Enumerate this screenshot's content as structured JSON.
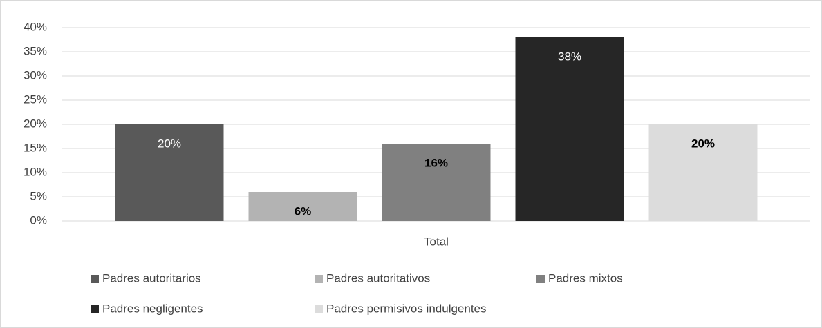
{
  "chart_data": {
    "type": "bar",
    "categories": [
      "Total"
    ],
    "series": [
      {
        "name": "Padres autoritarios",
        "color": "#595959",
        "values": [
          20
        ],
        "value_labels": [
          "20%"
        ]
      },
      {
        "name": "Padres autoritativos",
        "color": "#b3b3b3",
        "values": [
          6
        ],
        "value_labels": [
          "6%"
        ]
      },
      {
        "name": "Padres mixtos",
        "color": "#808080",
        "values": [
          16
        ],
        "value_labels": [
          "16%"
        ]
      },
      {
        "name": "Padres negligentes",
        "color": "#262626",
        "values": [
          38
        ],
        "value_labels": [
          "38%"
        ]
      },
      {
        "name": "Padres permisivos indulgentes",
        "color": "#dcdcdc",
        "values": [
          20
        ],
        "value_labels": [
          "20%"
        ]
      }
    ],
    "ylim": [
      0,
      40
    ],
    "yticks": [
      {
        "value": 0,
        "label": "0%"
      },
      {
        "value": 5,
        "label": "5%"
      },
      {
        "value": 10,
        "label": "10%"
      },
      {
        "value": 15,
        "label": "15%"
      },
      {
        "value": 20,
        "label": "20%"
      },
      {
        "value": 25,
        "label": "25%"
      },
      {
        "value": 30,
        "label": "30%"
      },
      {
        "value": 35,
        "label": "35%"
      },
      {
        "value": 40,
        "label": "40%"
      }
    ],
    "grid": true,
    "legend": "bottom"
  }
}
